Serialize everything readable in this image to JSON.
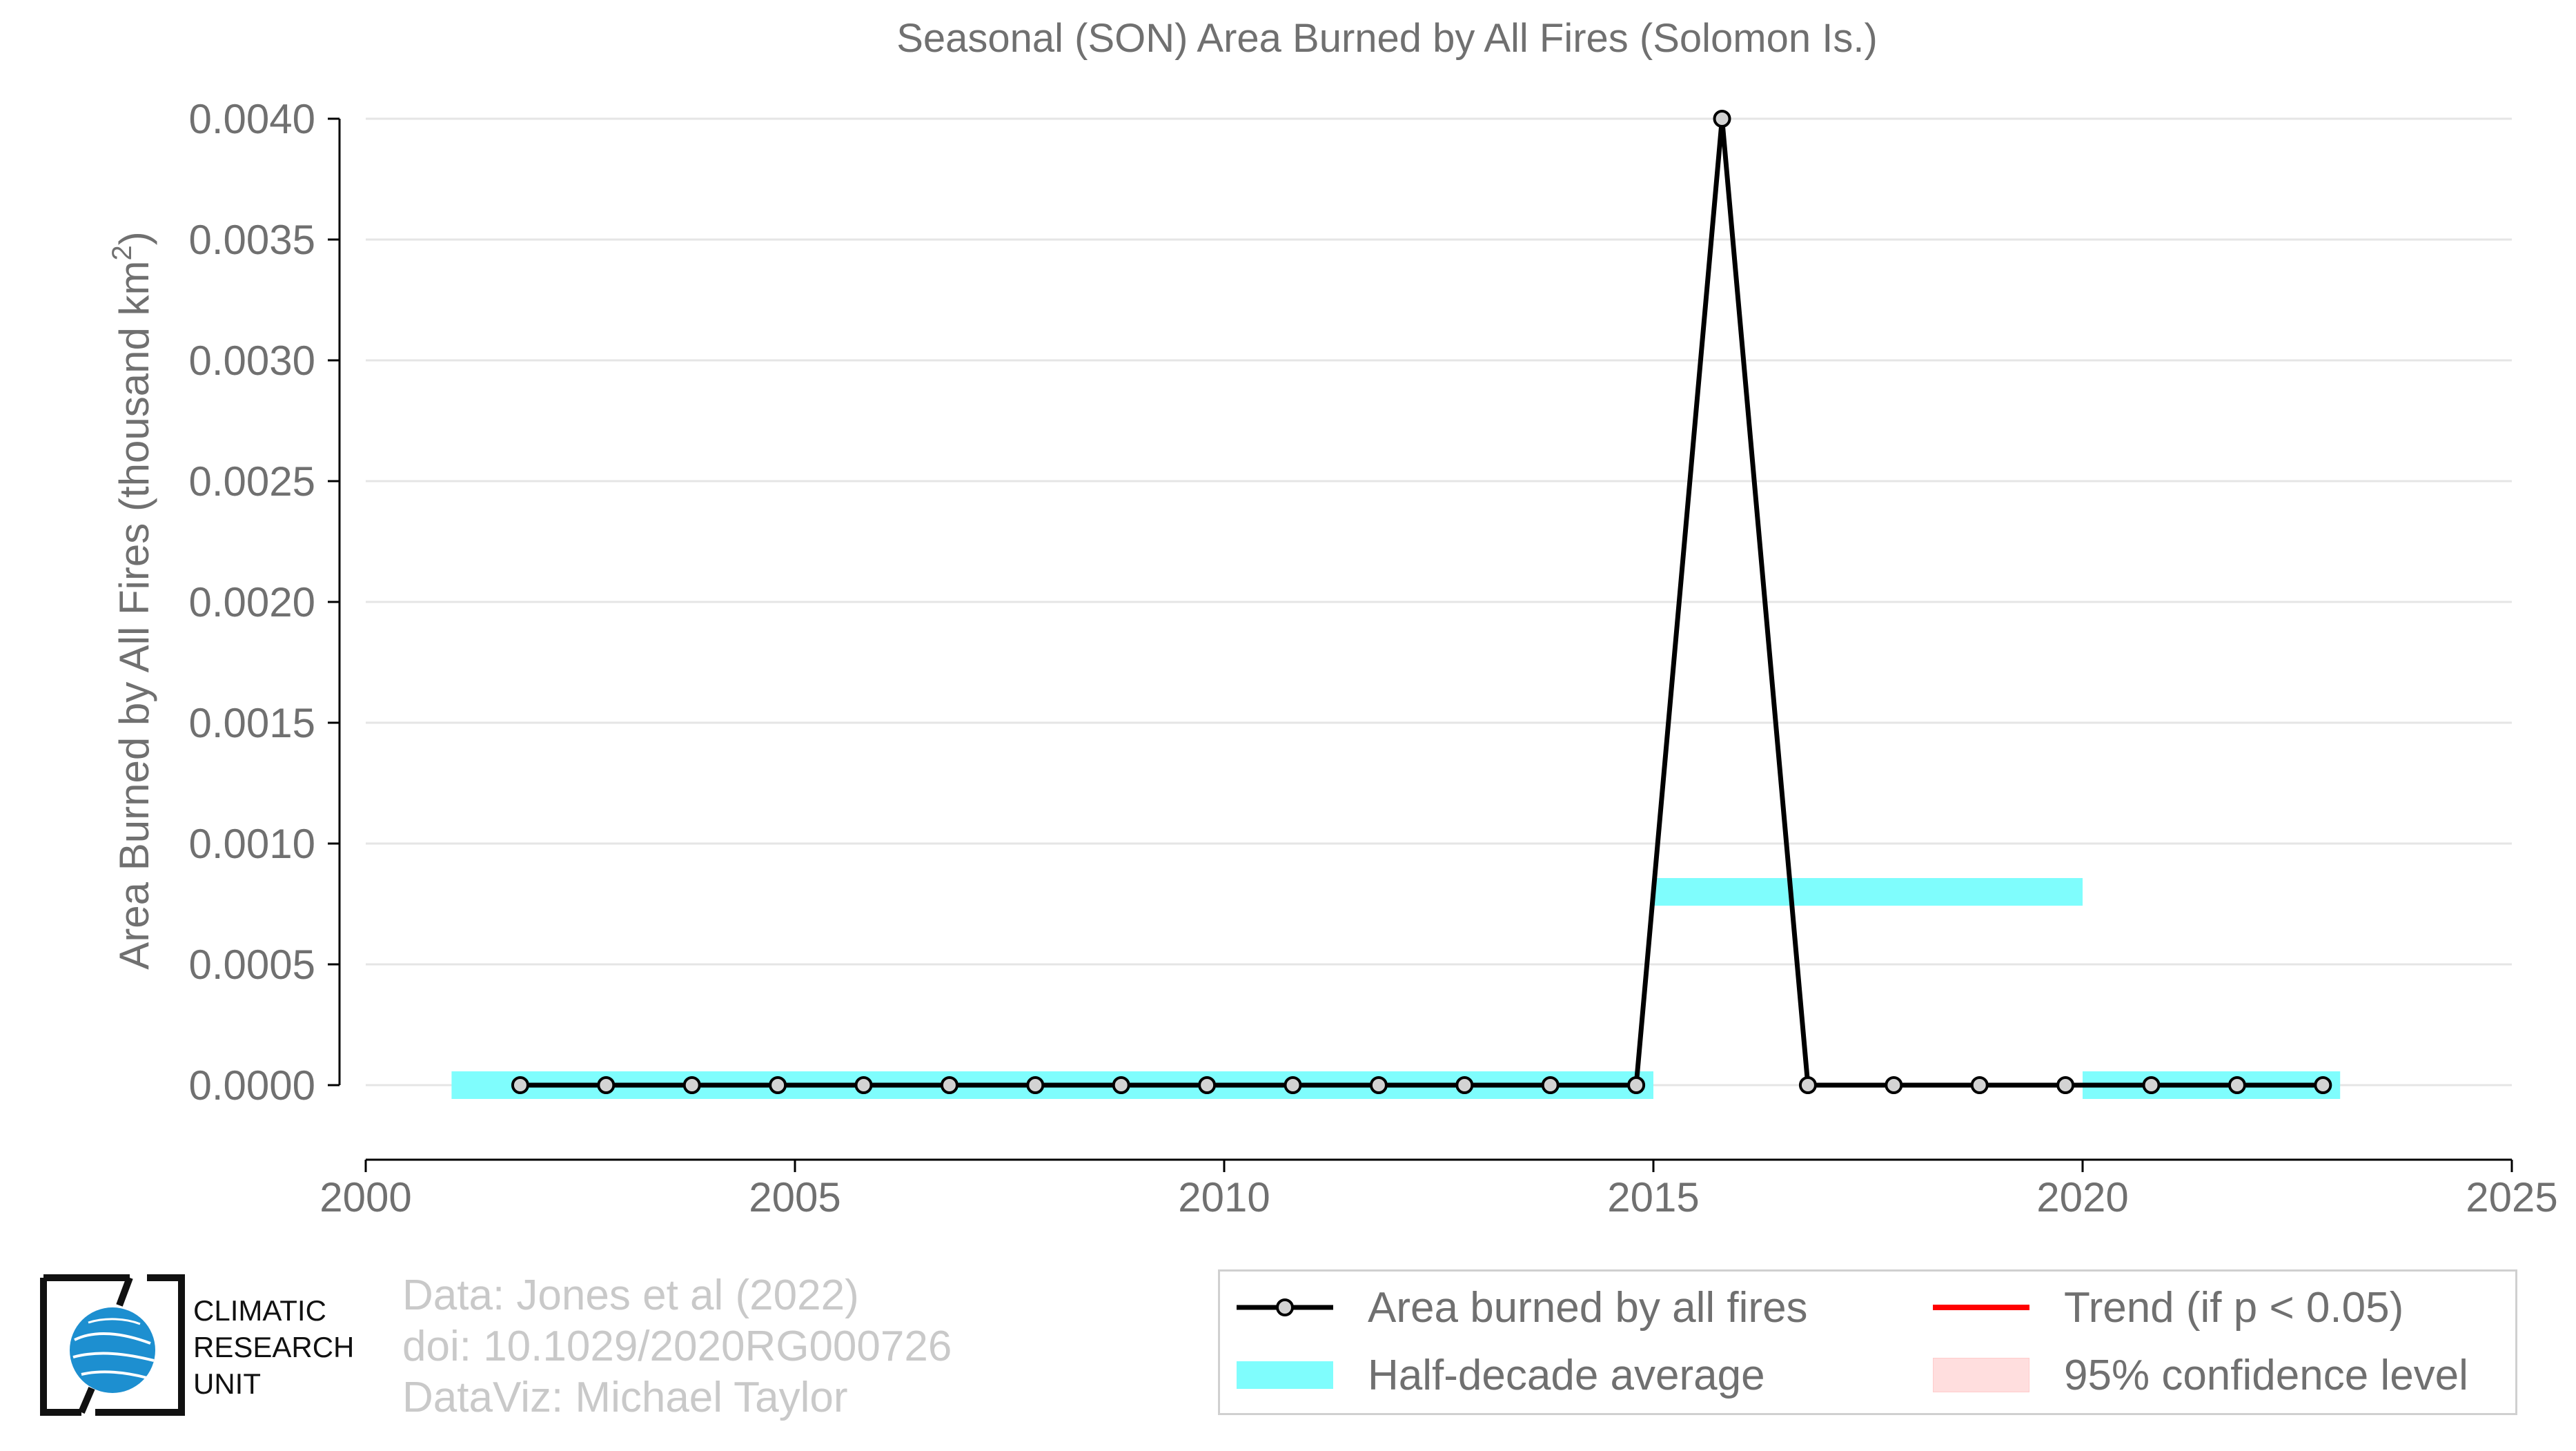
{
  "chart_data": {
    "type": "line",
    "title": "Seasonal (SON) Area Burned by All Fires (Solomon Is.)",
    "xlabel": "",
    "ylabel": "Area Burned by All Fires (thousand km",
    "ylabel_sup": "2",
    "ylabel_close": ")",
    "xlim": [
      2000,
      2025
    ],
    "ylim": [
      -0.00033,
      0.004
    ],
    "xticks": [
      "2000",
      "2005",
      "2010",
      "2015",
      "2020",
      "2025"
    ],
    "yticks": [
      "0.0000",
      "0.0005",
      "0.0010",
      "0.0015",
      "0.0020",
      "0.0025",
      "0.0030",
      "0.0035",
      "0.0040"
    ],
    "grid": true,
    "series": [
      {
        "name": "Area burned by all fires",
        "color": "#000000",
        "x": [
          2001.8,
          2002.8,
          2003.8,
          2004.8,
          2005.8,
          2006.8,
          2007.8,
          2008.8,
          2009.8,
          2010.8,
          2011.8,
          2012.8,
          2013.8,
          2014.8,
          2015.8,
          2016.8,
          2017.8,
          2018.8,
          2019.8,
          2020.8,
          2021.8,
          2022.8
        ],
        "values": [
          0,
          0,
          0,
          0,
          0,
          0,
          0,
          0,
          0,
          0,
          0,
          0,
          0,
          0,
          0.004,
          0,
          0,
          0,
          0,
          0,
          0,
          0
        ]
      },
      {
        "name": "Half-decade average",
        "color": "#7ffdfd",
        "segments": [
          {
            "x0": 2001,
            "x1": 2015,
            "value": 0
          },
          {
            "x0": 2015,
            "x1": 2020,
            "value": 0.0008
          },
          {
            "x0": 2020,
            "x1": 2023,
            "value": 0
          }
        ]
      }
    ],
    "legend": {
      "position": "bottom-right",
      "items": [
        {
          "label": "Area burned by all fires",
          "symbol": "line-marker",
          "color": "#000000"
        },
        {
          "label": "Trend (if p < 0.05)",
          "symbol": "line",
          "color": "#ff0000"
        },
        {
          "label": "Half-decade average",
          "symbol": "patch",
          "color": "#7ffdfd"
        },
        {
          "label": "95% confidence level",
          "symbol": "patch",
          "color": "#ffdede"
        }
      ]
    }
  },
  "credits": [
    "Data: Jones et al (2022)",
    "doi: 10.1029/2020RG000726",
    "DataViz: Michael Taylor"
  ],
  "logo": {
    "lines": [
      "CLIMATIC",
      "RESEARCH",
      "UNIT"
    ],
    "icon": "globe-icon"
  }
}
